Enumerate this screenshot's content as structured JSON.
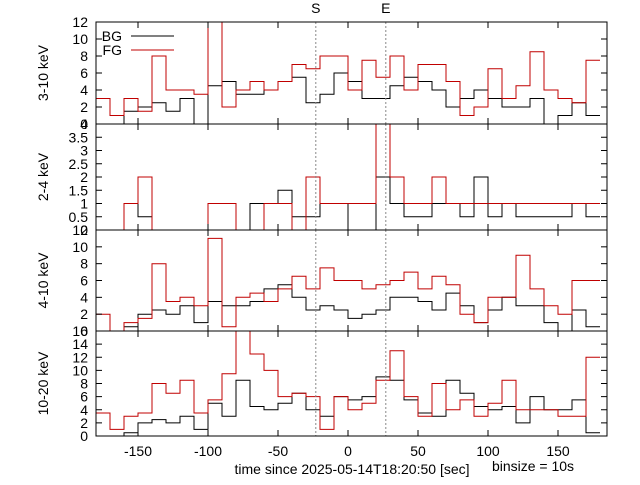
{
  "figure": {
    "xlabel": "time since 2025-05-14T18:20:50 [sec]",
    "binsize_note": "binsize = 10s",
    "x_range": [
      -180,
      185
    ],
    "x_ticks": [
      -150,
      -100,
      -50,
      0,
      50,
      100,
      150
    ],
    "markers": [
      {
        "label": "S",
        "x": -23
      },
      {
        "label": "E",
        "x": 27
      }
    ],
    "bin_edges": [
      -180,
      -170,
      -160,
      -150,
      -140,
      -130,
      -120,
      -110,
      -100,
      -90,
      -80,
      -70,
      -60,
      -50,
      -40,
      -30,
      -20,
      -10,
      0,
      10,
      20,
      30,
      40,
      50,
      60,
      70,
      80,
      90,
      100,
      110,
      120,
      130,
      140,
      150,
      160,
      170,
      180
    ],
    "colors": {
      "bg": "#000000",
      "fg": "#c00000",
      "marker": "#888888"
    }
  },
  "chart_data": [
    {
      "type": "line",
      "ylabel": "3-10 keV",
      "ylim": [
        0,
        12
      ],
      "y_ticks": [
        0,
        2,
        4,
        6,
        8,
        10,
        12
      ],
      "legend": {
        "placement": "top-left",
        "entries": [
          "BG",
          "FG"
        ]
      },
      "series": [
        {
          "name": "BG",
          "values": [
            0,
            0,
            1.5,
            2,
            2.5,
            1.5,
            3,
            0,
            4.5,
            5,
            3.5,
            3.5,
            4,
            5,
            5.5,
            2.5,
            3.5,
            6,
            5,
            3,
            3,
            4.5,
            5.5,
            5,
            4,
            2,
            3,
            4,
            3,
            2,
            2,
            3,
            0,
            1,
            2.5,
            1
          ]
        },
        {
          "name": "FG",
          "values": [
            3,
            1,
            3,
            1.5,
            8,
            4,
            4,
            3.5,
            12,
            2,
            4,
            5,
            4,
            5,
            7,
            6.5,
            8,
            8,
            4,
            7.5,
            5.5,
            8,
            4,
            7,
            7,
            5,
            1,
            2,
            6.5,
            3,
            4.5,
            8.5,
            4,
            3,
            2.5,
            7.5
          ]
        }
      ]
    },
    {
      "type": "line",
      "ylabel": "2-4 keV",
      "ylim": [
        0,
        4
      ],
      "y_ticks": [
        0,
        0.5,
        1,
        1.5,
        2,
        2.5,
        3,
        3.5,
        4
      ],
      "series": [
        {
          "name": "BG",
          "values": [
            0,
            0,
            1,
            0.5,
            0,
            0,
            0,
            0,
            0,
            0,
            0,
            1,
            1,
            1.5,
            0.5,
            0.5,
            1,
            1,
            0,
            0,
            2,
            1,
            0.5,
            0.5,
            1,
            1,
            0.5,
            2,
            0.5,
            1,
            0.5,
            0.5,
            0.5,
            0.5,
            1,
            0.5
          ]
        },
        {
          "name": "FG",
          "values": [
            0,
            0,
            1,
            2,
            0,
            0,
            0,
            0,
            1,
            1,
            0,
            0,
            1,
            1,
            0,
            2,
            1,
            1,
            1,
            1,
            4,
            2,
            1,
            1,
            2,
            1,
            1,
            1,
            1,
            1,
            1,
            1,
            1,
            1,
            1,
            1
          ]
        }
      ]
    },
    {
      "type": "line",
      "ylabel": "4-10 keV",
      "ylim": [
        0,
        12
      ],
      "y_ticks": [
        0,
        2,
        4,
        6,
        8,
        10,
        12
      ],
      "series": [
        {
          "name": "BG",
          "values": [
            0,
            0,
            0.5,
            2,
            2.5,
            2,
            3,
            1,
            3.5,
            3,
            3,
            3.5,
            5,
            5.5,
            4,
            2.5,
            3,
            2.5,
            1.5,
            2,
            2.5,
            4,
            4,
            3.5,
            2.5,
            4.5,
            3,
            1,
            2.5,
            4,
            3,
            3,
            1,
            0,
            2.5,
            0.5
          ]
        },
        {
          "name": "FG",
          "values": [
            2,
            0,
            1,
            1.5,
            8,
            3.5,
            4,
            3,
            11,
            0.5,
            4,
            4.5,
            3.5,
            5,
            6.5,
            5,
            7.5,
            6,
            6,
            5,
            5.5,
            6,
            7,
            5,
            6.5,
            5.5,
            2,
            1,
            4,
            4,
            9,
            5,
            3,
            2,
            6,
            6
          ]
        }
      ]
    },
    {
      "type": "line",
      "ylabel": "10-20 keV",
      "ylim": [
        0,
        16
      ],
      "y_ticks": [
        0,
        2,
        4,
        6,
        8,
        10,
        12,
        14,
        16
      ],
      "series": [
        {
          "name": "BG",
          "values": [
            0,
            0,
            0.5,
            2,
            2.5,
            2,
            3,
            1,
            5,
            3,
            8.5,
            4.5,
            4,
            5,
            6.5,
            4,
            3,
            6,
            5.5,
            6,
            9,
            8.5,
            5.5,
            3.5,
            3,
            8.5,
            6.5,
            4.5,
            4,
            4.5,
            2,
            6,
            4,
            4,
            5.5,
            0.5
          ]
        },
        {
          "name": "FG",
          "values": [
            3.5,
            1,
            3,
            3.5,
            8,
            6.5,
            8.5,
            3.5,
            5.5,
            9.5,
            16,
            12.5,
            10,
            6,
            6.5,
            6,
            1,
            6,
            4,
            5,
            8.5,
            13,
            6,
            3,
            8,
            4,
            5.5,
            3,
            5,
            8.5,
            4,
            4,
            4,
            3,
            3,
            12
          ]
        }
      ]
    }
  ]
}
